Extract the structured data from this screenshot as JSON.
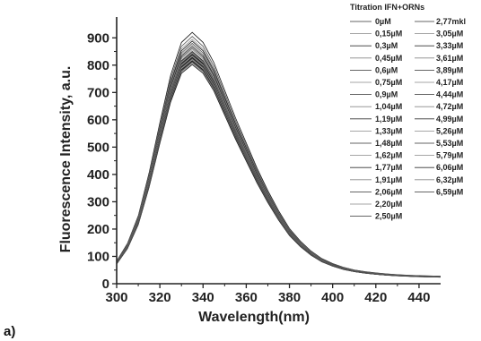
{
  "chart_data": {
    "type": "line",
    "xlabel": "Wavelength(nm)",
    "ylabel": "Fluorescence Intensity, a.u.",
    "xlim": [
      300,
      450
    ],
    "ylim": [
      0,
      950
    ],
    "xticks": [
      300,
      320,
      340,
      360,
      380,
      400,
      420,
      440
    ],
    "yticks": [
      0,
      100,
      200,
      300,
      400,
      500,
      600,
      700,
      800,
      900
    ],
    "panel_label": "a)",
    "legend": {
      "title": "Titration IFN+ORNs",
      "position": "top-right",
      "entries_left": [
        "0µM",
        "0,15µM",
        "0,3µM",
        "0,45µM",
        "0,6µM",
        "0,75µM",
        "0,9µM",
        "1,04µM",
        "1,19µM",
        "1,33µM",
        "1,48µM",
        "1,62µM",
        "1,77µM",
        "1,91µM",
        "2,06µM",
        "2,20µM",
        "2,50µM"
      ],
      "entries_right": [
        "2,77mkl",
        "3,05µM",
        "3,33µM",
        "3,61µM",
        "3,89µM",
        "4,17µM",
        "4,44µM",
        "4,72µM",
        "4,99µM",
        "5,26µM",
        "5,53µM",
        "5,79µM",
        "6,06µM",
        "6,32µM",
        "6,59µM"
      ]
    },
    "peak_wavelength": 335,
    "x": [
      300,
      305,
      310,
      315,
      320,
      325,
      330,
      335,
      340,
      345,
      350,
      355,
      360,
      365,
      370,
      375,
      380,
      385,
      390,
      395,
      400,
      405,
      410,
      415,
      420,
      425,
      430,
      435,
      440,
      445,
      450
    ],
    "profile": [
      0.09,
      0.16,
      0.27,
      0.44,
      0.64,
      0.83,
      0.96,
      1.0,
      0.96,
      0.88,
      0.77,
      0.66,
      0.56,
      0.46,
      0.37,
      0.29,
      0.22,
      0.17,
      0.13,
      0.1,
      0.08,
      0.065,
      0.055,
      0.048,
      0.043,
      0.039,
      0.036,
      0.034,
      0.032,
      0.031,
      0.03
    ],
    "peak_values": [
      920,
      905,
      895,
      888,
      880,
      874,
      868,
      862,
      856,
      850,
      846,
      842,
      838,
      834,
      830,
      826,
      822,
      818,
      814,
      810,
      806,
      802,
      848,
      844,
      840,
      836,
      832,
      828,
      824,
      820,
      816,
      812
    ]
  },
  "colors": {
    "curve_dark": "#1a1a1a",
    "curve_light": "#9a9a9a",
    "axis": "#222222"
  }
}
